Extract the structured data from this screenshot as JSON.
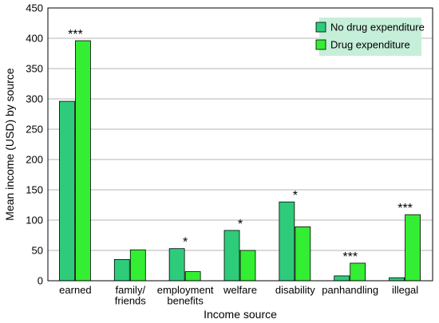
{
  "chart_data": {
    "type": "bar",
    "xlabel": "Income source",
    "ylabel": "Mean income (USD) by source",
    "ylim": [
      0,
      450
    ],
    "yticks": [
      0,
      50,
      100,
      150,
      200,
      250,
      300,
      350,
      400,
      450
    ],
    "grid": "horizontal",
    "legend_position": "top-right",
    "categories": [
      [
        "earned"
      ],
      [
        "family/",
        "friends"
      ],
      [
        "employment",
        "benefits"
      ],
      [
        "welfare"
      ],
      [
        "disability"
      ],
      [
        "panhandling"
      ],
      [
        "illegal"
      ]
    ],
    "series": [
      {
        "name": "No drug expenditure",
        "color": "#2ecc7a",
        "values": [
          296,
          35,
          53,
          83,
          130,
          8,
          5
        ]
      },
      {
        "name": "Drug expenditure",
        "color": "#33ee33",
        "values": [
          396,
          51,
          15,
          50,
          89,
          29,
          109
        ]
      }
    ],
    "significance": [
      "***",
      "",
      "*",
      "*",
      "*",
      "***",
      "***"
    ],
    "legend_bg": "#c6efd9"
  }
}
